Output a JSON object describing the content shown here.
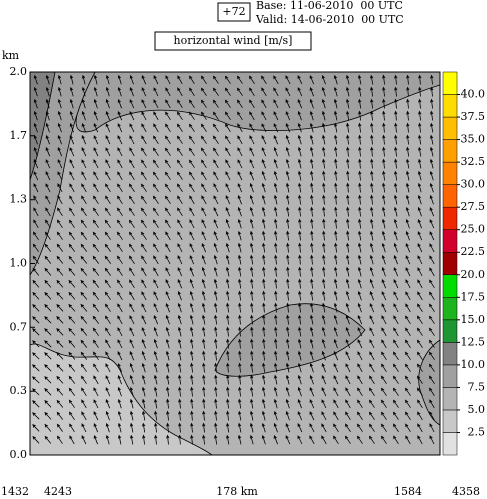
{
  "header": {
    "lead": "+72",
    "base": "Base: 11-06-2010  00 UTC",
    "valid": "Valid: 14-06-2010  00 UTC"
  },
  "chart_data": {
    "type": "contour",
    "title": "horizontal wind [m/s]",
    "y_label": "km",
    "ylim": [
      0,
      2
    ],
    "yticks": [
      {
        "value": 0,
        "label": "0.0"
      },
      {
        "value": 0.333,
        "label": "0.3"
      },
      {
        "value": 0.667,
        "label": "0.7"
      },
      {
        "value": 1,
        "label": "1.0"
      },
      {
        "value": 1.333,
        "label": "1.3"
      },
      {
        "value": 1.667,
        "label": "1.7"
      },
      {
        "value": 2,
        "label": "2.0"
      }
    ],
    "x_labels": [
      "1432",
      "4243",
      "178 km",
      "1584",
      "4358"
    ],
    "colorbar": {
      "levels": [
        0,
        2.5,
        5,
        7.5,
        10,
        12.5,
        15,
        17.5,
        20,
        22.5,
        25,
        27.5,
        30,
        32.5,
        35,
        37.5,
        40,
        42.5
      ],
      "colors": [
        "#e1e1e1",
        "#c8c8c8",
        "#b4b4b4",
        "#a0a0a0",
        "#828282",
        "#1e9632",
        "#1eb41e",
        "#00dc00",
        "#a00000",
        "#d2002d",
        "#f02800",
        "#ff6400",
        "#ff8200",
        "#ffa000",
        "#ffbe00",
        "#ffdc00",
        "#ffff00"
      ],
      "ticks": [
        2.5,
        {
          "value": 5,
          "label": "5.0"
        },
        7.5,
        {
          "value": 10,
          "label": "10.0"
        },
        12.5,
        {
          "value": 15,
          "label": "15.0"
        },
        17.5,
        {
          "value": 20,
          "label": "20.0"
        },
        22.5,
        {
          "value": 25,
          "label": "25.0"
        },
        27.5,
        {
          "value": 30,
          "label": "30.0"
        },
        32.5,
        {
          "value": 35,
          "label": "35.0"
        },
        37.5,
        {
          "value": 40,
          "label": "40.0"
        }
      ]
    }
  }
}
